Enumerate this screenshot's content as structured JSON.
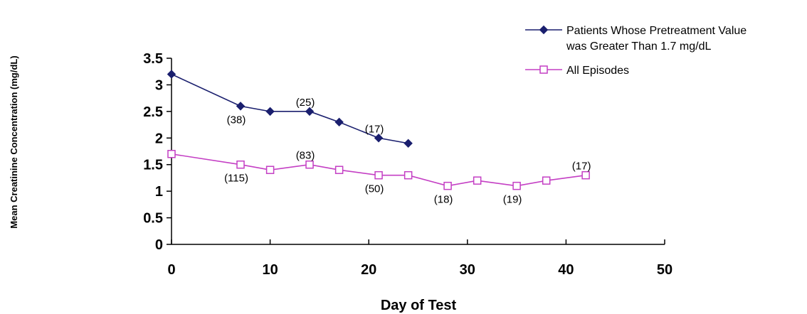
{
  "chart_data": {
    "type": "line",
    "xlabel": "Day of Test",
    "ylabel": "Mean Creatinine Concentration (mg/dL)",
    "xlim": [
      0,
      50
    ],
    "ylim": [
      0,
      3.5
    ],
    "xticks": [
      "0",
      "10",
      "20",
      "30",
      "40",
      "50"
    ],
    "yticks": [
      "0",
      "0.5",
      "1",
      "1.5",
      "2",
      "2.5",
      "3",
      "3.5"
    ],
    "grid": false,
    "legend_position": "top-right",
    "series": [
      {
        "name": "Patients Whose Pretreatment Value was Greater Than 1.7 mg/dL",
        "legend_lines": [
          "Patients Whose Pretreatment Value",
          "was Greater Than 1.7 mg/dL"
        ],
        "color": "#1a1f6e",
        "marker": "filled-diamond",
        "x": [
          0,
          7,
          10,
          14,
          17,
          21,
          24
        ],
        "y": [
          3.2,
          2.6,
          2.5,
          2.5,
          2.3,
          2.0,
          1.9
        ]
      },
      {
        "name": "All Episodes",
        "legend_lines": [
          "All Episodes"
        ],
        "color": "#c43fc4",
        "marker": "open-square",
        "x": [
          0,
          7,
          10,
          14,
          17,
          21,
          24,
          28,
          31,
          35,
          38,
          42
        ],
        "y": [
          1.7,
          1.5,
          1.4,
          1.5,
          1.4,
          1.3,
          1.3,
          1.1,
          1.2,
          1.1,
          1.2,
          1.3
        ]
      }
    ],
    "annotations": [
      {
        "text": "(38)",
        "x": 7,
        "y": 2.6,
        "pos": "below"
      },
      {
        "text": "(25)",
        "x": 14,
        "y": 2.5,
        "pos": "above"
      },
      {
        "text": "(17)",
        "x": 21,
        "y": 2.0,
        "pos": "above"
      },
      {
        "text": "(115)",
        "x": 7,
        "y": 1.5,
        "pos": "below"
      },
      {
        "text": "(83)",
        "x": 14,
        "y": 1.5,
        "pos": "above"
      },
      {
        "text": "(50)",
        "x": 21,
        "y": 1.3,
        "pos": "below"
      },
      {
        "text": "(18)",
        "x": 28,
        "y": 1.1,
        "pos": "below"
      },
      {
        "text": "(19)",
        "x": 35,
        "y": 1.1,
        "pos": "below"
      },
      {
        "text": "(17)",
        "x": 42,
        "y": 1.3,
        "pos": "above"
      }
    ]
  }
}
